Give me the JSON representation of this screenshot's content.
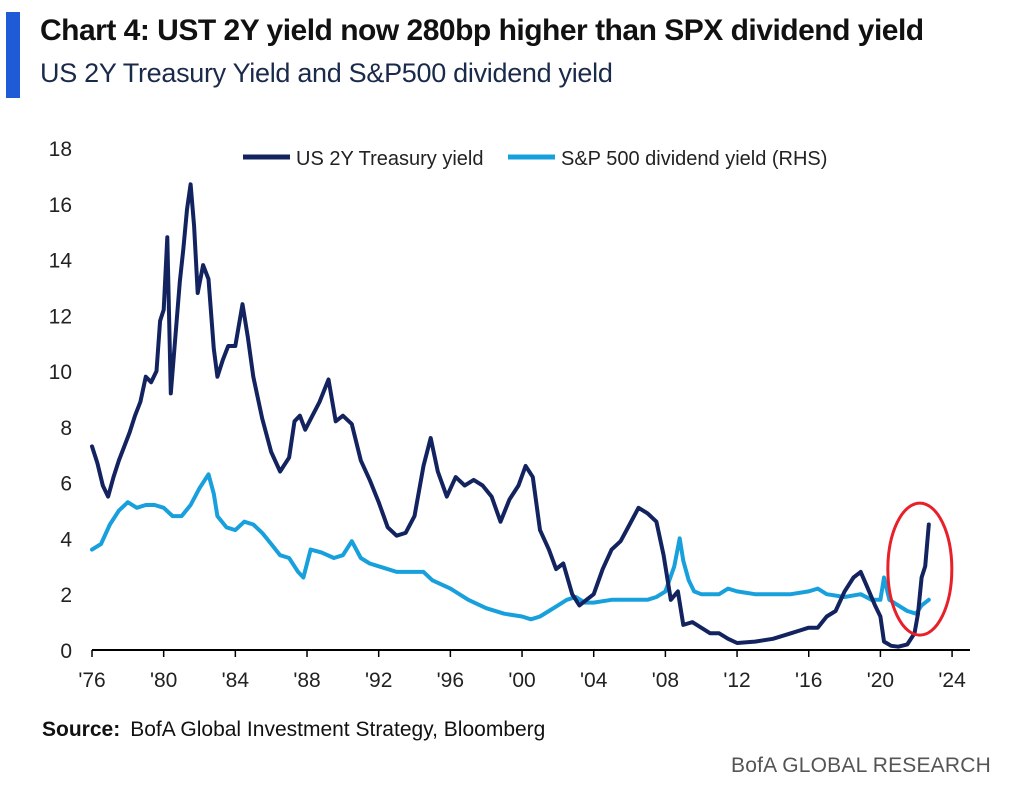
{
  "header": {
    "title": "Chart 4: UST 2Y yield now 280bp higher than SPX dividend yield",
    "subtitle": "US 2Y Treasury Yield and S&P500 dividend yield"
  },
  "footer": {
    "source_label": "Source:",
    "source_text": "BofA Global Investment Strategy, Bloomberg",
    "brand": "BofA GLOBAL RESEARCH"
  },
  "colors": {
    "accent": "#1f5bd6",
    "treasury": "#13235f",
    "dividend": "#18a0dc",
    "highlight_circle": "#e8202a"
  },
  "chart_data": {
    "type": "line",
    "xlim": [
      1976,
      2025
    ],
    "ylim": [
      0,
      18
    ],
    "x_ticks": [
      1976,
      1980,
      1984,
      1988,
      1992,
      1996,
      2000,
      2004,
      2008,
      2012,
      2016,
      2020,
      2024
    ],
    "x_tick_labels": [
      "'76",
      "'80",
      "'84",
      "'88",
      "'92",
      "'96",
      "'00",
      "'04",
      "'08",
      "'12",
      "'16",
      "'20",
      "'24"
    ],
    "y_ticks": [
      0,
      2,
      4,
      6,
      8,
      10,
      12,
      14,
      16,
      18
    ],
    "y_tick_labels": [
      "0",
      "2",
      "4",
      "6",
      "8",
      "10",
      "12",
      "14",
      "16",
      "18"
    ],
    "legend_position": "top-center",
    "annotation": "red circle around 2022 spike",
    "series": [
      {
        "name": "US 2Y Treasury yield",
        "x": [
          1976.0,
          1976.3,
          1976.6,
          1976.9,
          1977.2,
          1977.5,
          1977.8,
          1978.1,
          1978.4,
          1978.7,
          1979.0,
          1979.3,
          1979.6,
          1979.8,
          1980.0,
          1980.2,
          1980.4,
          1980.6,
          1980.9,
          1981.1,
          1981.3,
          1981.5,
          1981.7,
          1981.9,
          1982.2,
          1982.5,
          1982.8,
          1983.0,
          1983.3,
          1983.6,
          1984.0,
          1984.4,
          1984.7,
          1985.0,
          1985.5,
          1986.0,
          1986.5,
          1987.0,
          1987.3,
          1987.6,
          1987.9,
          1988.3,
          1988.7,
          1989.2,
          1989.6,
          1990.0,
          1990.5,
          1991.0,
          1991.5,
          1992.0,
          1992.5,
          1993.0,
          1993.5,
          1994.0,
          1994.5,
          1994.9,
          1995.3,
          1995.8,
          1996.3,
          1996.8,
          1997.3,
          1997.8,
          1998.3,
          1998.8,
          1999.3,
          1999.8,
          2000.2,
          2000.6,
          2001.0,
          2001.5,
          2001.9,
          2002.3,
          2002.8,
          2003.2,
          2003.6,
          2004.0,
          2004.5,
          2005.0,
          2005.5,
          2006.0,
          2006.5,
          2007.0,
          2007.5,
          2007.9,
          2008.3,
          2008.7,
          2009.0,
          2009.5,
          2010.0,
          2010.5,
          2011.0,
          2011.5,
          2012.0,
          2013.0,
          2014.0,
          2014.5,
          2015.0,
          2015.5,
          2016.0,
          2016.5,
          2017.0,
          2017.5,
          2018.0,
          2018.5,
          2018.9,
          2019.3,
          2019.7,
          2020.0,
          2020.2,
          2020.6,
          2021.0,
          2021.5,
          2021.9,
          2022.1,
          2022.3,
          2022.5,
          2022.7
        ],
        "values": [
          7.3,
          6.7,
          5.9,
          5.5,
          6.2,
          6.8,
          7.3,
          7.8,
          8.4,
          8.9,
          9.8,
          9.6,
          10.0,
          11.8,
          12.2,
          14.8,
          9.2,
          10.8,
          13.2,
          14.4,
          15.8,
          16.7,
          15.2,
          12.8,
          13.8,
          13.3,
          10.8,
          9.8,
          10.4,
          10.9,
          10.9,
          12.4,
          11.2,
          9.8,
          8.3,
          7.1,
          6.4,
          6.9,
          8.2,
          8.4,
          7.9,
          8.4,
          8.9,
          9.7,
          8.2,
          8.4,
          8.1,
          6.8,
          6.1,
          5.3,
          4.4,
          4.1,
          4.2,
          4.8,
          6.6,
          7.6,
          6.4,
          5.5,
          6.2,
          5.9,
          6.1,
          5.9,
          5.5,
          4.6,
          5.4,
          5.9,
          6.6,
          6.2,
          4.3,
          3.6,
          2.9,
          3.1,
          2.0,
          1.6,
          1.8,
          2.0,
          2.9,
          3.6,
          3.9,
          4.5,
          5.1,
          4.9,
          4.6,
          3.4,
          1.8,
          2.1,
          0.9,
          1.0,
          0.8,
          0.6,
          0.6,
          0.4,
          0.25,
          0.3,
          0.4,
          0.5,
          0.6,
          0.7,
          0.8,
          0.8,
          1.2,
          1.4,
          2.1,
          2.6,
          2.8,
          2.2,
          1.6,
          1.2,
          0.3,
          0.15,
          0.12,
          0.2,
          0.6,
          1.3,
          2.6,
          3.0,
          4.5
        ]
      },
      {
        "name": "S&P 500 dividend yield (RHS)",
        "x": [
          1976.0,
          1976.5,
          1977.0,
          1977.5,
          1978.0,
          1978.5,
          1979.0,
          1979.5,
          1980.0,
          1980.5,
          1981.0,
          1981.5,
          1982.0,
          1982.5,
          1982.8,
          1983.0,
          1983.5,
          1984.0,
          1984.5,
          1985.0,
          1985.5,
          1986.0,
          1986.5,
          1987.0,
          1987.5,
          1987.8,
          1988.2,
          1988.8,
          1989.5,
          1990.0,
          1990.5,
          1991.0,
          1991.5,
          1992.0,
          1993.0,
          1994.0,
          1994.5,
          1995.0,
          1996.0,
          1997.0,
          1998.0,
          1999.0,
          2000.0,
          2000.5,
          2001.0,
          2001.5,
          2002.0,
          2002.5,
          2003.0,
          2003.5,
          2004.0,
          2005.0,
          2006.0,
          2007.0,
          2007.5,
          2008.0,
          2008.5,
          2008.8,
          2009.0,
          2009.3,
          2009.6,
          2010.0,
          2011.0,
          2011.5,
          2012.0,
          2013.0,
          2014.0,
          2015.0,
          2016.0,
          2016.5,
          2017.0,
          2018.0,
          2018.9,
          2019.5,
          2020.0,
          2020.2,
          2020.5,
          2021.0,
          2021.5,
          2022.0,
          2022.3,
          2022.7
        ],
        "values": [
          3.6,
          3.8,
          4.5,
          5.0,
          5.3,
          5.1,
          5.2,
          5.2,
          5.1,
          4.8,
          4.8,
          5.2,
          5.8,
          6.3,
          5.6,
          4.8,
          4.4,
          4.3,
          4.6,
          4.5,
          4.2,
          3.8,
          3.4,
          3.3,
          2.8,
          2.6,
          3.6,
          3.5,
          3.3,
          3.4,
          3.9,
          3.3,
          3.1,
          3.0,
          2.8,
          2.8,
          2.8,
          2.5,
          2.2,
          1.8,
          1.5,
          1.3,
          1.2,
          1.1,
          1.2,
          1.4,
          1.6,
          1.8,
          1.9,
          1.7,
          1.7,
          1.8,
          1.8,
          1.8,
          1.9,
          2.1,
          3.0,
          4.0,
          3.2,
          2.5,
          2.1,
          2.0,
          2.0,
          2.2,
          2.1,
          2.0,
          2.0,
          2.0,
          2.1,
          2.2,
          2.0,
          1.9,
          2.0,
          1.8,
          1.8,
          2.6,
          1.8,
          1.6,
          1.4,
          1.3,
          1.6,
          1.8
        ]
      }
    ]
  }
}
